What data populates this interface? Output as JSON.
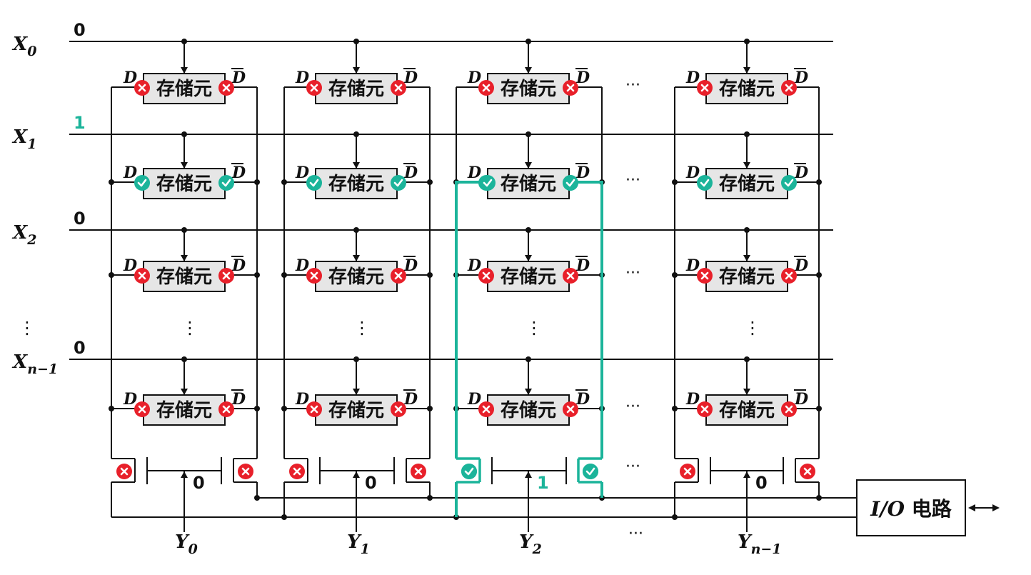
{
  "row_labels": [
    {
      "main": "X",
      "sub": "0"
    },
    {
      "main": "X",
      "sub": "1"
    },
    {
      "main": "X",
      "sub": "2"
    },
    {
      "main": "X",
      "sub": "n−1"
    }
  ],
  "row_values": [
    "0",
    "1",
    "0",
    "0"
  ],
  "row_ellipsis": "⋮",
  "col_labels": [
    {
      "main": "Y",
      "sub": "0"
    },
    {
      "main": "Y",
      "sub": "1"
    },
    {
      "main": "Y",
      "sub": "2"
    },
    {
      "main": "Y",
      "sub": "n−1"
    }
  ],
  "col_values": [
    "0",
    "0",
    "1",
    "0"
  ],
  "selected_row": 1,
  "selected_col": 2,
  "cell": {
    "label": "存储元",
    "d": "D",
    "dbar": "D"
  },
  "ellipsis_h": "···",
  "ellipsis_v": "⋮",
  "io": {
    "prefix": "I/O",
    "suffix": " 电路",
    "arrow": "⟷"
  },
  "colors": {
    "line": "#111111",
    "active": "#1bb49a",
    "bad": "#e8202a",
    "cellfill": "#e6e6e6"
  },
  "icons": {
    "enabled": "check-circle-icon",
    "disabled": "x-circle-icon"
  }
}
